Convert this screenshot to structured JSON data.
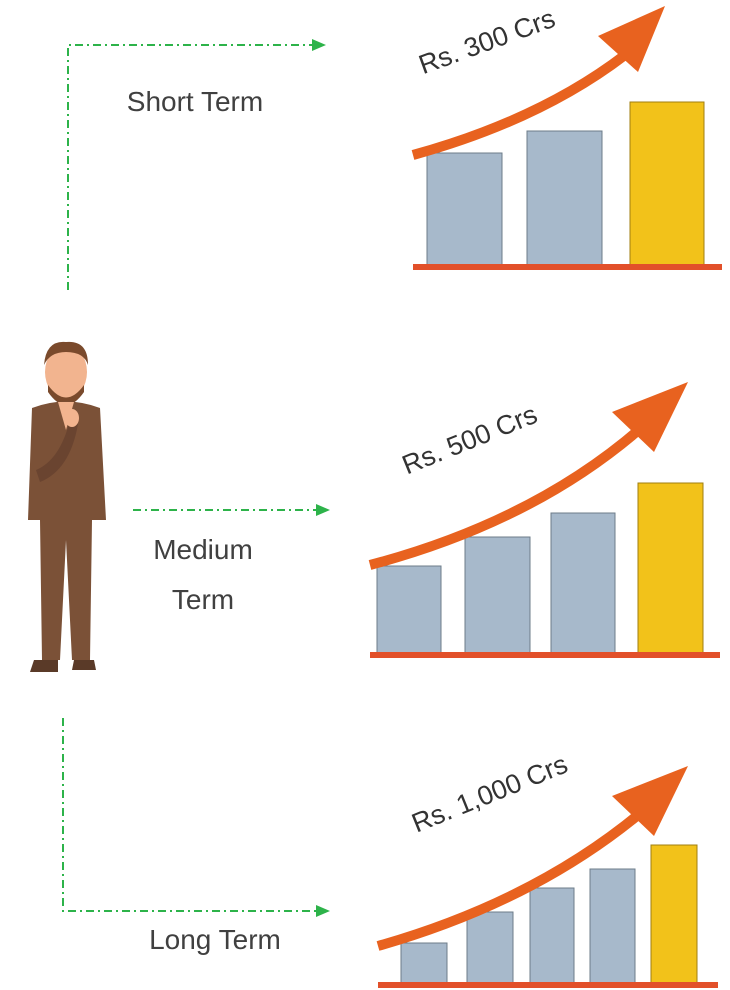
{
  "items": [
    {
      "label": "Short Term",
      "amount": "Rs. 300 Crs"
    },
    {
      "label": "Medium Term",
      "amount": "Rs. 500 Crs"
    },
    {
      "label": "Long Term",
      "amount": "Rs. 1,000 Crs"
    }
  ]
}
